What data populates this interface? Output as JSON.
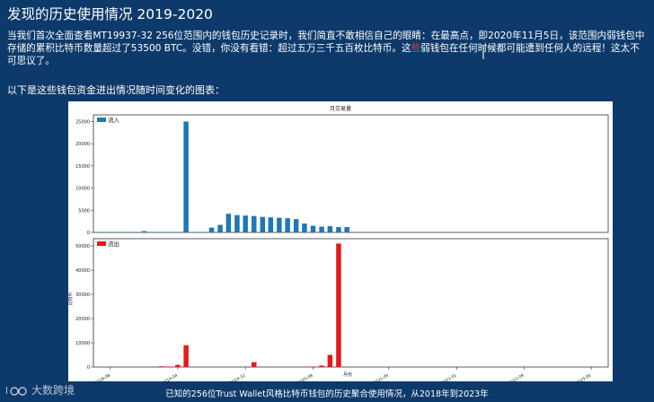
{
  "page": {
    "title": "发现的历史使用情况 2019-2020",
    "paragraph_before": "当我们首次全面查看MT19937-32 256位范围内的钱包历史记录时，我们简直不敢相信自己的眼睛：在最高点，即2020年11月5日，该范围内弱钱包中存储的累积比特币数量超过了53500 BTC。没错，你没有看错：超过五万三千五百枚比特币。这",
    "paragraph_mark": "些",
    "paragraph_after": "弱钱包在任何时候都可能遭到任何人的远程！这太不可思议了。",
    "intro": "以下是这些钱包资金进出情况随时间变化的图表：",
    "caption": "已知的256位Trust Wallet风格比特币钱包的历史聚合使用情况，从2018年到2023年",
    "logo_text": "大数跨境"
  },
  "chart_data": [
    {
      "type": "bar",
      "title": "月交易量",
      "legend": "流入",
      "color": "#1f77b4",
      "ylim": [
        0,
        26500
      ],
      "yticks": [
        0,
        5000,
        10000,
        15000,
        20000,
        25000
      ],
      "x": [
        "2018-07",
        "2018-08",
        "2018-09",
        "2018-10",
        "2018-11",
        "2018-12",
        "2019-01",
        "2019-02",
        "2019-03",
        "2019-04",
        "2019-05",
        "2019-06",
        "2019-07",
        "2019-08",
        "2019-09",
        "2019-10",
        "2019-11",
        "2019-12",
        "2020-01",
        "2020-02",
        "2020-03",
        "2020-04",
        "2020-05",
        "2020-06",
        "2020-07",
        "2020-08",
        "2020-09",
        "2020-10",
        "2020-11",
        "2020-12"
      ],
      "values": [
        0,
        0,
        0,
        0,
        0,
        300,
        0,
        0,
        0,
        0,
        25000,
        0,
        0,
        1100,
        1700,
        4200,
        3900,
        3800,
        3700,
        3500,
        3400,
        3300,
        3200,
        3000,
        2000,
        1500,
        1300,
        1400,
        1200,
        1200
      ]
    },
    {
      "type": "bar",
      "legend": "流出",
      "color": "#e31a1c",
      "ylabel": "比特币",
      "xlabel": "月份",
      "ylim": [
        0,
        53000
      ],
      "yticks": [
        0,
        10000,
        20000,
        30000,
        40000,
        50000
      ],
      "xticks": [
        "2018-08",
        "2019-04",
        "2019-12",
        "2020-08",
        "2021-05",
        "2022-01",
        "2022-09",
        "2023-05"
      ],
      "x": [
        "2019-02",
        "2019-03",
        "2019-04",
        "2019-05",
        "2020-01",
        "2020-08",
        "2020-09",
        "2020-10",
        "2020-11"
      ],
      "values": [
        300,
        200,
        900,
        9000,
        2000,
        200,
        600,
        5000,
        51000
      ]
    }
  ]
}
